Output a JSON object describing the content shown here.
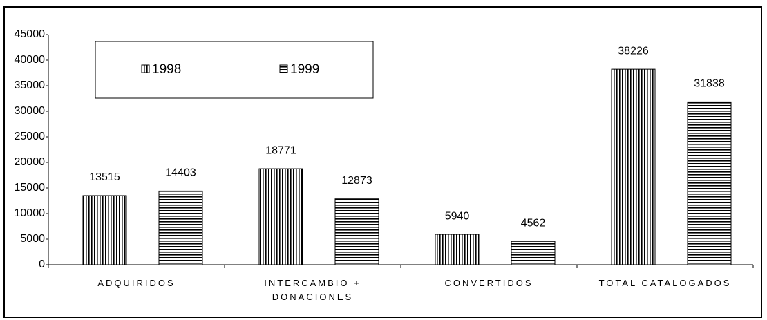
{
  "chart_data": {
    "type": "bar",
    "categories": [
      "ADQUIRIDOS",
      "INTERCAMBIO + DONACIONES",
      "CONVERTIDOS",
      "TOTAL CATALOGADOS"
    ],
    "series": [
      {
        "name": "1998",
        "color": "#000000",
        "pattern": "vertical",
        "values": [
          13515,
          18771,
          5940,
          38226
        ]
      },
      {
        "name": "1999",
        "color": "#000000",
        "pattern": "horizontal",
        "values": [
          14403,
          12873,
          4562,
          31838
        ]
      }
    ],
    "ylim": [
      0,
      45000
    ],
    "yticks": [
      0,
      5000,
      10000,
      15000,
      20000,
      25000,
      30000,
      35000,
      40000,
      45000
    ],
    "grid": false,
    "legend": "top-left"
  }
}
